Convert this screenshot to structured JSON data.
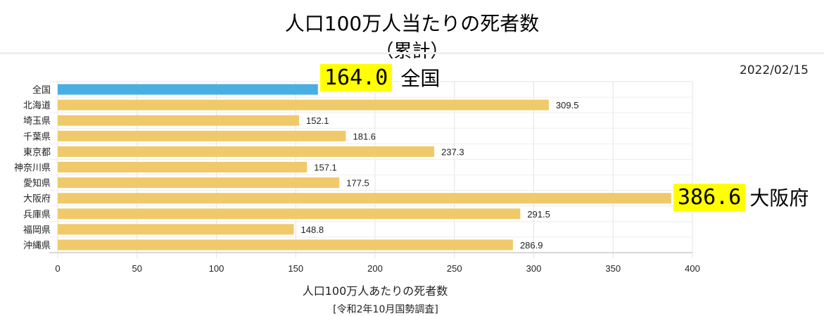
{
  "chart_data": {
    "type": "bar",
    "orientation": "horizontal",
    "title": "人口100万人当たりの死者数",
    "subtitle": "（累計）",
    "date": "2022/02/15",
    "xlabel": "人口100万人あたりの死者数",
    "source": "[令和2年10月国勢調査]",
    "categories": [
      "全国",
      "北海道",
      "埼玉県",
      "千葉県",
      "東京都",
      "神奈川県",
      "愛知県",
      "大阪府",
      "兵庫県",
      "福岡県",
      "沖縄県"
    ],
    "values": [
      164.0,
      309.5,
      152.1,
      181.6,
      237.3,
      157.1,
      177.5,
      386.6,
      291.5,
      148.8,
      286.9
    ],
    "data_labels": [
      "",
      "309.5",
      "152.1",
      "181.6",
      "237.3",
      "157.1",
      "177.5",
      "",
      "291.5",
      "148.8",
      "286.9"
    ],
    "xlim": [
      0,
      400
    ],
    "xticks": [
      0,
      50,
      100,
      150,
      200,
      250,
      300,
      350,
      400
    ],
    "grid": true,
    "colors": {
      "national": "#4aaee2",
      "prefecture": "#f0ca6a",
      "highlight": "#ffff00"
    },
    "callouts": [
      {
        "value": "164.0",
        "label": "全国"
      },
      {
        "value": "386.6",
        "label": "大阪府"
      }
    ]
  }
}
